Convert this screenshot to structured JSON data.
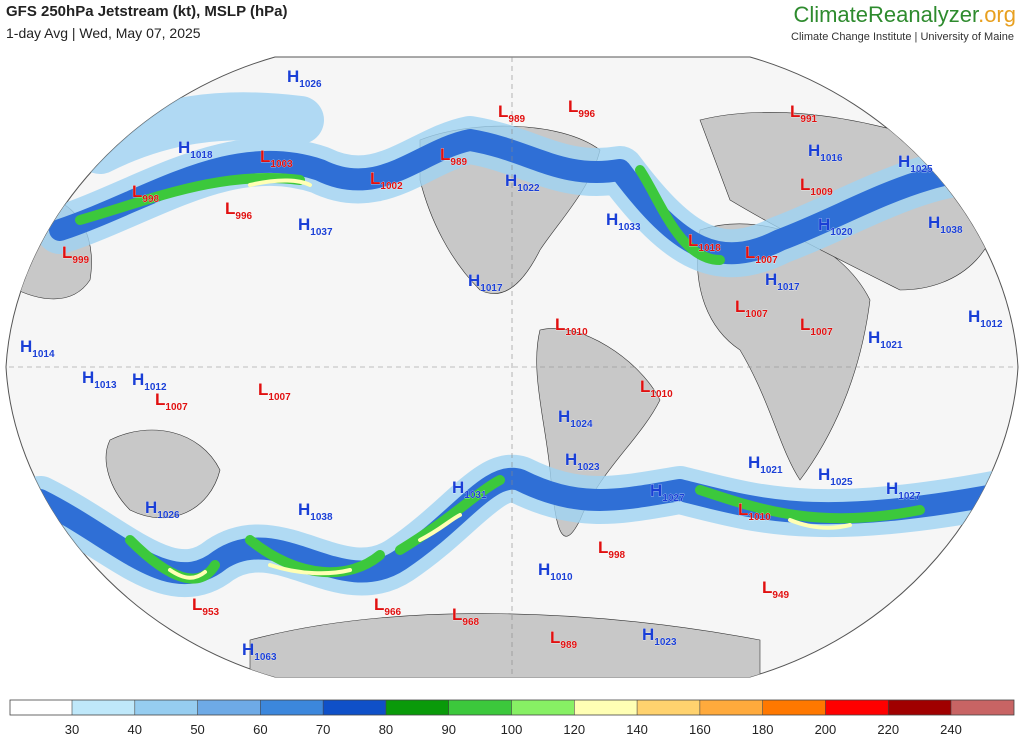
{
  "header": {
    "title": "GFS 250hPa Jetstream (kt), MSLP (hPa)",
    "subtitle": "1-day Avg | Wed, May 07, 2025",
    "brand_main": "ClimateReanalyzer",
    "brand_suffix": ".org",
    "brand_sub": "Climate Change Institute | University of Maine"
  },
  "pressure_centers": [
    {
      "type": "H",
      "value": 1026
    },
    {
      "type": "H",
      "value": 1018
    },
    {
      "type": "L",
      "value": 1003
    },
    {
      "type": "L",
      "value": 998
    },
    {
      "type": "L",
      "value": 996
    },
    {
      "type": "H",
      "value": 1037
    },
    {
      "type": "L",
      "value": 999
    },
    {
      "type": "L",
      "value": 1002
    },
    {
      "type": "L",
      "value": 989
    },
    {
      "type": "L",
      "value": 989
    },
    {
      "type": "L",
      "value": 996
    },
    {
      "type": "H",
      "value": 1022
    },
    {
      "type": "H",
      "value": 1033
    },
    {
      "type": "L",
      "value": 991
    },
    {
      "type": "H",
      "value": 1016
    },
    {
      "type": "H",
      "value": 1025
    },
    {
      "type": "L",
      "value": 1009
    },
    {
      "type": "H",
      "value": 1020
    },
    {
      "type": "H",
      "value": 1038
    },
    {
      "type": "L",
      "value": 1018
    },
    {
      "type": "L",
      "value": 1007
    },
    {
      "type": "H",
      "value": 1017
    },
    {
      "type": "L",
      "value": 1007
    },
    {
      "type": "L",
      "value": 1007
    },
    {
      "type": "H",
      "value": 1021
    },
    {
      "type": "H",
      "value": 1012
    },
    {
      "type": "H",
      "value": 1017
    },
    {
      "type": "L",
      "value": 1010
    },
    {
      "type": "L",
      "value": 1010
    },
    {
      "type": "H",
      "value": 1014
    },
    {
      "type": "H",
      "value": 1013
    },
    {
      "type": "H",
      "value": 1012
    },
    {
      "type": "L",
      "value": 1007
    },
    {
      "type": "L",
      "value": 1007
    },
    {
      "type": "H",
      "value": 1024
    },
    {
      "type": "H",
      "value": 1023
    },
    {
      "type": "H",
      "value": 1021
    },
    {
      "type": "H",
      "value": 1025
    },
    {
      "type": "H",
      "value": 1027
    },
    {
      "type": "H",
      "value": 1027
    },
    {
      "type": "L",
      "value": 1010
    },
    {
      "type": "H",
      "value": 1031
    },
    {
      "type": "H",
      "value": 1026
    },
    {
      "type": "H",
      "value": 1038
    },
    {
      "type": "L",
      "value": 998
    },
    {
      "type": "H",
      "value": 1010
    },
    {
      "type": "L",
      "value": 949
    },
    {
      "type": "L",
      "value": 953
    },
    {
      "type": "L",
      "value": 966
    },
    {
      "type": "L",
      "value": 968
    },
    {
      "type": "L",
      "value": 989
    },
    {
      "type": "H",
      "value": 1023
    },
    {
      "type": "H",
      "value": 1063
    }
  ],
  "colorbar": {
    "ticks": [
      30,
      40,
      50,
      60,
      70,
      80,
      90,
      100,
      120,
      140,
      160,
      180,
      200,
      220,
      240
    ],
    "colors": [
      "#ffffff",
      "#bfe8fa",
      "#96cdf0",
      "#6eaae6",
      "#3c87dc",
      "#0f50c8",
      "#0a9a0a",
      "#3cc83c",
      "#87f064",
      "#ffffb4",
      "#ffd26e",
      "#ffaa3c",
      "#ff7800",
      "#ff0000",
      "#a00000",
      "#c86464",
      "#e0b4a8"
    ]
  }
}
